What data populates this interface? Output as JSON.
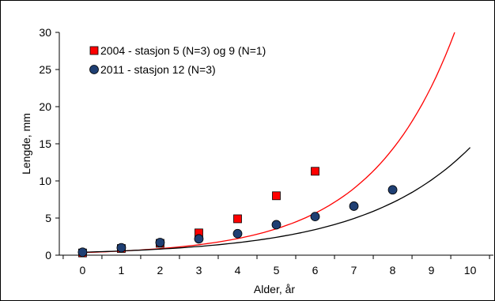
{
  "chart_data": {
    "type": "scatter",
    "title": "",
    "xlabel": "Alder, år",
    "ylabel": "Lengde, mm",
    "xlim": [
      -0.6,
      10.6
    ],
    "ylim": [
      0,
      30
    ],
    "xticks": [
      0,
      1,
      2,
      3,
      4,
      5,
      6,
      7,
      8,
      9,
      10
    ],
    "yticks": [
      0,
      5,
      10,
      15,
      20,
      25,
      30
    ],
    "grid": false,
    "legend_position": "top-left",
    "series": [
      {
        "name": "2004 - stasjon 5 (N=3) og 9 (N=1)",
        "marker": "square",
        "color": "#ff0000",
        "x": [
          0,
          1,
          2,
          3,
          4,
          5,
          6
        ],
        "y": [
          0.3,
          0.9,
          1.6,
          3.0,
          4.9,
          8.0,
          11.3
        ],
        "trendline": {
          "type": "exponential-fit",
          "color": "#ff0000",
          "x_range": [
            0,
            9.6
          ],
          "y_at_range": [
            0.35,
            30.0
          ]
        }
      },
      {
        "name": "2011 - stasjon 12 (N=3)",
        "marker": "circle",
        "color": "#1f3f73",
        "x": [
          0,
          1,
          2,
          3,
          4,
          5,
          6,
          7,
          8
        ],
        "y": [
          0.4,
          1.0,
          1.7,
          2.2,
          2.9,
          4.1,
          5.2,
          6.6,
          8.8
        ],
        "trendline": {
          "type": "exponential-fit",
          "color": "#000000",
          "x_range": [
            0,
            10
          ],
          "y_at_range": [
            0.4,
            14.5
          ]
        }
      }
    ]
  }
}
